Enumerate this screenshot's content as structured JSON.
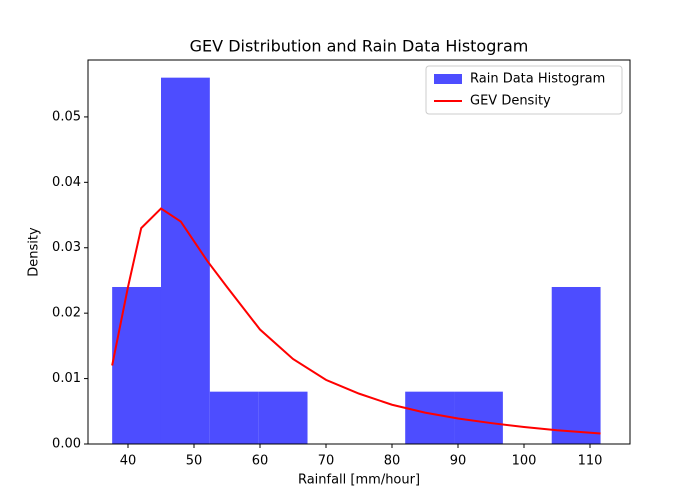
{
  "chart_data": {
    "type": "histogram",
    "title": "GEV Distribution and Rain Data Histogram",
    "x_label": "Rainfall [mm/hour]",
    "y_label": "Density",
    "bins": [
      37.6,
      45.0,
      52.4,
      59.8,
      67.2,
      74.6,
      82.0,
      89.4,
      96.8,
      104.2,
      111.6
    ],
    "series": [
      {
        "name": "Rain Data Histogram",
        "type": "histogram",
        "color": "#4d4dff",
        "values": [
          0.024,
          0.056,
          0.008,
          0.008,
          0,
          0,
          0.008,
          0.008,
          0,
          0.024
        ]
      },
      {
        "name": "GEV Density",
        "type": "line",
        "color": "#ff0000",
        "x": [
          37.6,
          40,
          42,
          45,
          48,
          52,
          55,
          60,
          65,
          70,
          75,
          80,
          85,
          90,
          95,
          100,
          105,
          111.6
        ],
        "values": [
          0.012,
          0.024,
          0.033,
          0.036,
          0.034,
          0.028,
          0.024,
          0.0175,
          0.013,
          0.0098,
          0.0077,
          0.006,
          0.0048,
          0.0039,
          0.0032,
          0.0026,
          0.0021,
          0.0016
        ]
      }
    ],
    "xlim": [
      33.94,
      116.06
    ],
    "xticks": [
      40,
      50,
      60,
      70,
      80,
      90,
      100,
      110
    ],
    "ylim": [
      0,
      0.0587
    ],
    "yticks": [
      {
        "value": 0,
        "label": "0.00"
      },
      {
        "value": 0.01,
        "label": "0.01"
      },
      {
        "value": 0.02,
        "label": "0.02"
      },
      {
        "value": 0.03,
        "label": "0.03"
      },
      {
        "value": 0.04,
        "label": "0.04"
      },
      {
        "value": 0.05,
        "label": "0.05"
      }
    ],
    "legend": "upper right"
  }
}
